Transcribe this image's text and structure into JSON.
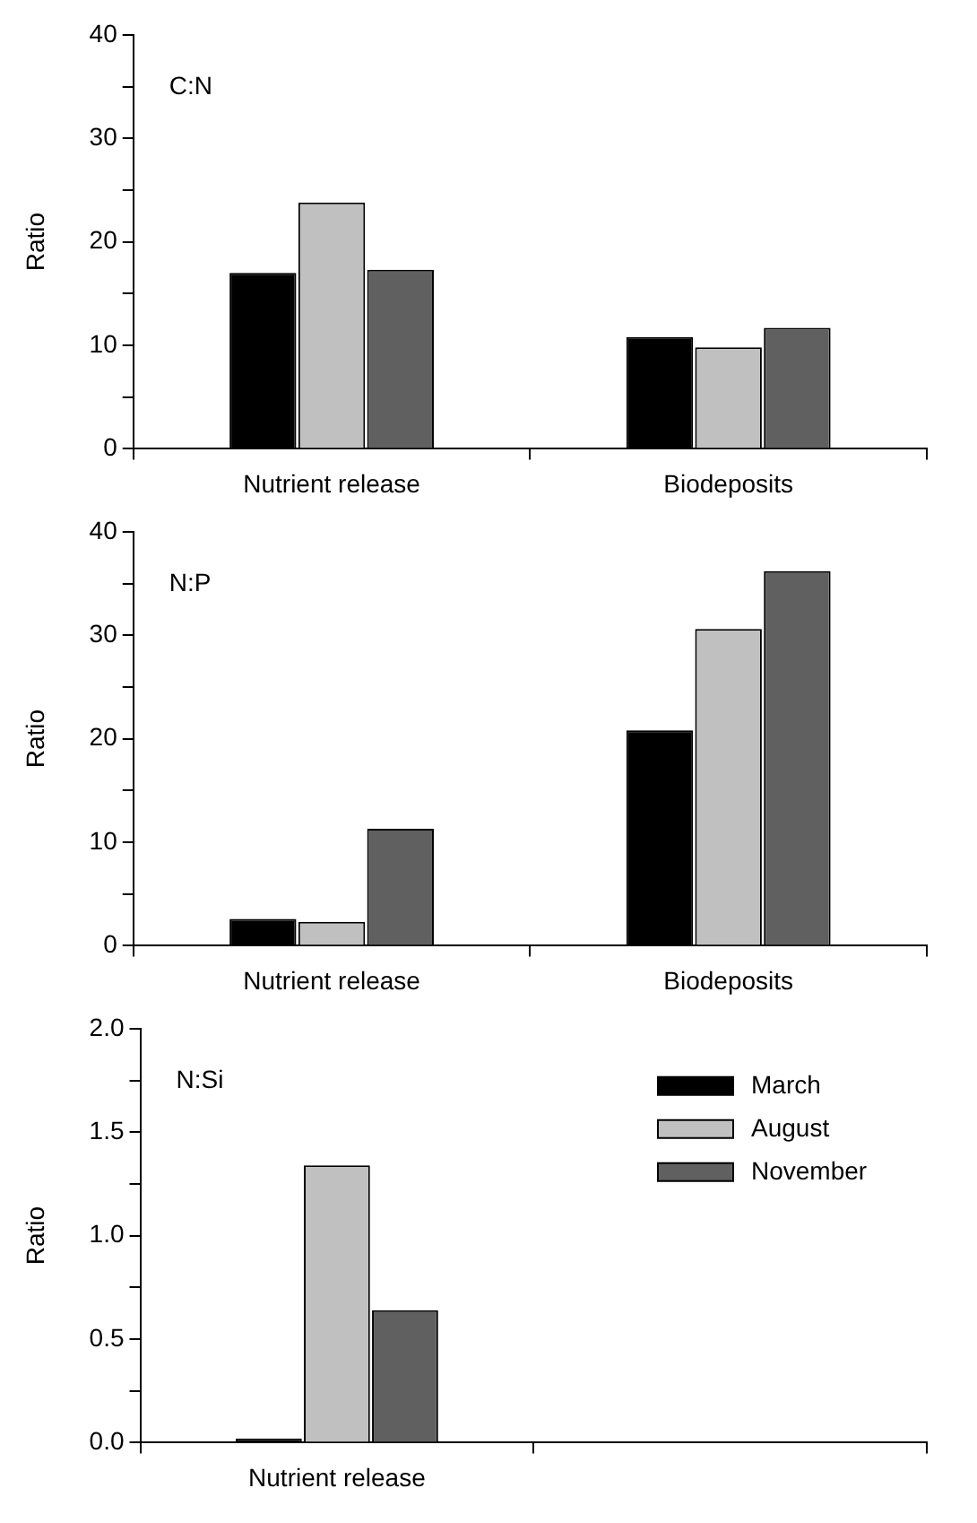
{
  "chart_data": [
    {
      "type": "bar",
      "title": "C:N",
      "ylabel": "Ratio",
      "categories": [
        "Nutrient release",
        "Biodeposits"
      ],
      "series": [
        {
          "color": "#000000",
          "values": [
            17.0,
            10.8
          ]
        },
        {
          "color": "#c0c0c0",
          "values": [
            23.8,
            9.8
          ]
        },
        {
          "color": "#606060",
          "values": [
            17.3,
            11.7
          ]
        }
      ],
      "ylim": [
        0,
        40
      ],
      "yticks": [
        0,
        {
          "value": 5,
          "label": null
        },
        10,
        {
          "value": 15,
          "label": null
        },
        20,
        {
          "value": 25,
          "label": null
        },
        30,
        {
          "value": 35,
          "label": null
        },
        40
      ],
      "grid": false,
      "legend": false
    },
    {
      "type": "bar",
      "title": "N:P",
      "ylabel": "Ratio",
      "categories": [
        "Nutrient release",
        "Biodeposits"
      ],
      "series": [
        {
          "color": "#000000",
          "values": [
            2.6,
            20.8
          ]
        },
        {
          "color": "#c0c0c0",
          "values": [
            2.3,
            30.6
          ]
        },
        {
          "color": "#606060",
          "values": [
            11.3,
            36.2
          ]
        }
      ],
      "ylim": [
        0,
        40
      ],
      "yticks": [
        0,
        {
          "value": 5,
          "label": null
        },
        10,
        {
          "value": 15,
          "label": null
        },
        20,
        {
          "value": 25,
          "label": null
        },
        30,
        {
          "value": 35,
          "label": null
        },
        40
      ],
      "grid": false,
      "legend": false
    },
    {
      "type": "bar",
      "title": "N:Si",
      "ylabel": "Ratio",
      "categories": [
        "Nutrient release",
        null
      ],
      "series": [
        {
          "name": "March",
          "color": "#000000",
          "values": [
            0.02,
            null
          ]
        },
        {
          "name": "August",
          "color": "#c0c0c0",
          "values": [
            1.34,
            null
          ]
        },
        {
          "name": "November",
          "color": "#606060",
          "values": [
            0.64,
            null
          ]
        }
      ],
      "ylim": [
        0,
        2
      ],
      "yticks": [
        {
          "value": 0,
          "label": "0.0"
        },
        {
          "value": 0.25,
          "label": null
        },
        0.5,
        {
          "value": 0.75,
          "label": null
        },
        {
          "value": 1,
          "label": "1.0"
        },
        {
          "value": 1.25,
          "label": null
        },
        1.5,
        {
          "value": 1.75,
          "label": null
        },
        {
          "value": 2,
          "label": "2.0"
        }
      ],
      "grid": false,
      "legend": "top right"
    }
  ]
}
